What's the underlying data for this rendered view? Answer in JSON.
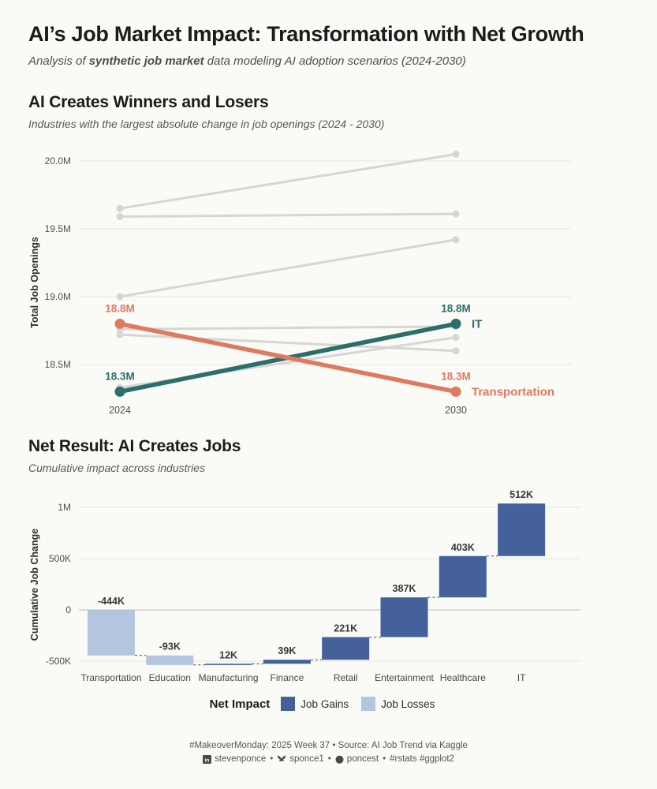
{
  "page": {
    "background": "#FAFAF7",
    "title": "AI’s Job Market Impact: Transformation with Net Growth",
    "subtitle_prefix": "Analysis of ",
    "subtitle_bold": "synthetic job market",
    "subtitle_suffix": " data modeling AI adoption scenarios (2024-2030)"
  },
  "legend": {
    "title": "Net Impact",
    "gains_label": "Job Gains",
    "losses_label": "Job Losses"
  },
  "footer": {
    "line1": "#MakeoverMonday: 2025 Week 37 • Source: AI Job Trend via Kaggle",
    "handles": [
      {
        "icon": "linkedin-icon",
        "text": "stevenponce"
      },
      {
        "icon": "bluesky-icon",
        "text": "sponce1"
      },
      {
        "icon": "github-icon",
        "text": "poncest"
      },
      {
        "icon": "",
        "text": "#rstats #ggplot2"
      }
    ]
  },
  "chart_data": [
    {
      "type": "line",
      "subtype": "slope",
      "title": "AI Creates Winners and Losers",
      "subtitle": "Industries with the largest absolute change in job openings (2024 - 2030)",
      "x": [
        "2024",
        "2030"
      ],
      "xlabel": "",
      "ylabel": "Total Job Openings",
      "ylim": [
        18.25,
        20.1
      ],
      "grid": true,
      "yticks": [
        {
          "value": 20.0,
          "label": "20.0M"
        },
        {
          "value": 19.5,
          "label": "19.5M"
        },
        {
          "value": 19.0,
          "label": "19.0M"
        },
        {
          "value": 18.5,
          "label": "18.5M"
        }
      ],
      "series": [
        {
          "name": "background-industry-1",
          "values": [
            19.65,
            20.05
          ],
          "highlight": false
        },
        {
          "name": "background-industry-2",
          "values": [
            19.59,
            19.61
          ],
          "highlight": false
        },
        {
          "name": "background-industry-3",
          "values": [
            19.0,
            19.42
          ],
          "highlight": false
        },
        {
          "name": "background-industry-4",
          "values": [
            18.76,
            18.78
          ],
          "highlight": false
        },
        {
          "name": "background-industry-5",
          "values": [
            18.72,
            18.6
          ],
          "highlight": false
        },
        {
          "name": "background-industry-6",
          "values": [
            18.33,
            18.7
          ],
          "highlight": false
        },
        {
          "name": "IT",
          "values": [
            18.3,
            18.8
          ],
          "labels": [
            "18.3M",
            "18.8M"
          ],
          "color": "#2B6E6B",
          "highlight": true
        },
        {
          "name": "Transportation",
          "values": [
            18.8,
            18.3
          ],
          "labels": [
            "18.8M",
            "18.3M"
          ],
          "color": "#DE7A5F",
          "highlight": true
        }
      ],
      "background_color_hint": "#D6D6D3"
    },
    {
      "type": "bar",
      "subtype": "waterfall",
      "title": "Net Result: AI Creates Jobs",
      "subtitle": "Cumulative impact across industries",
      "categories": [
        "Transportation",
        "Education",
        "Manufacturing",
        "Finance",
        "Retail",
        "Entertainment",
        "Healthcare",
        "IT"
      ],
      "changes_k": [
        -444,
        -93,
        12,
        39,
        221,
        387,
        403,
        512
      ],
      "labels": [
        "-444K",
        "-93K",
        "12K",
        "39K",
        "221K",
        "387K",
        "403K",
        "512K"
      ],
      "cumulative_k": [
        -444,
        -537,
        -525,
        -486,
        -265,
        122,
        525,
        1037
      ],
      "ylabel": "Cumulative Job Change",
      "ylim_k": [
        -600,
        1100
      ],
      "grid": true,
      "yticks": [
        {
          "value": 1000,
          "label": "1M"
        },
        {
          "value": 500,
          "label": "500K"
        },
        {
          "value": 0,
          "label": "0"
        },
        {
          "value": -500,
          "label": "-500K"
        }
      ],
      "gain_color": "#44619B",
      "loss_color": "#B4C5DE",
      "legend_position": "bottom"
    }
  ]
}
